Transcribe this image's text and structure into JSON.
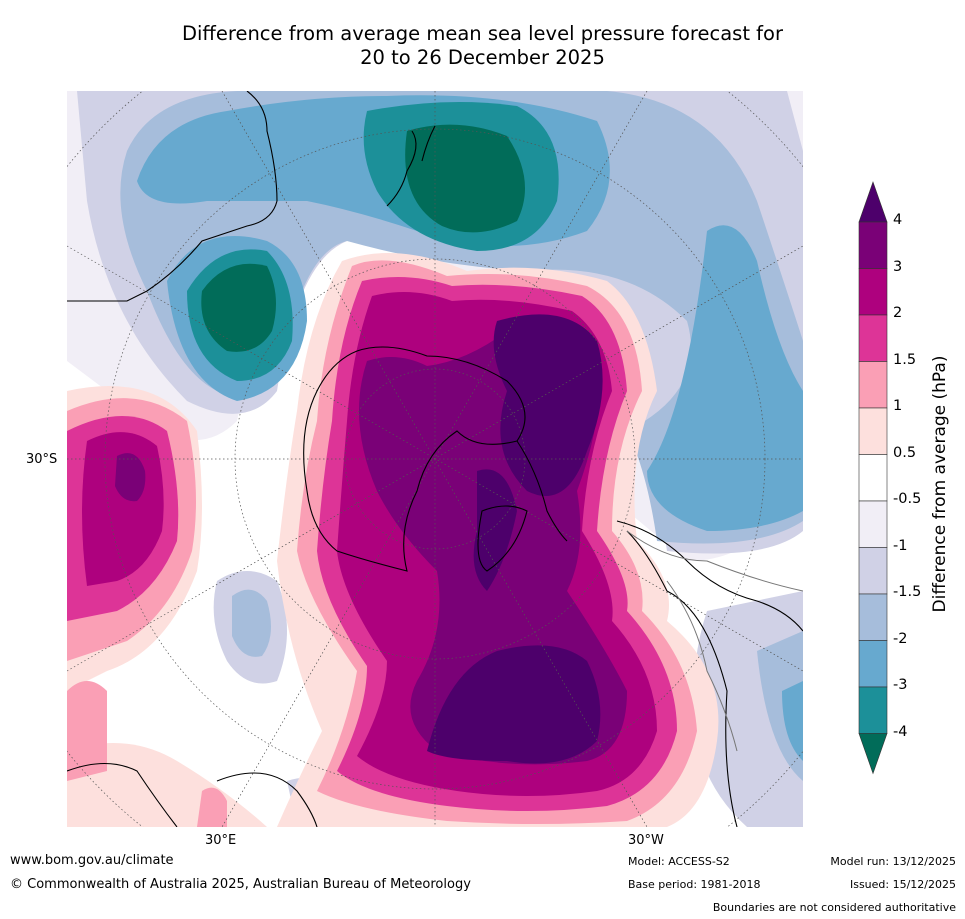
{
  "title_line1": "Difference from average mean sea level pressure forecast for",
  "title_line2": "20 to 26 December 2025",
  "map": {
    "lat_label_left": "30°S",
    "lon_label_bottom_left": "30°E",
    "lon_label_bottom_right": "30°W"
  },
  "colorbar": {
    "title": "Difference from average (hPa)",
    "ticks": [
      "4",
      "3",
      "2",
      "1.5",
      "1",
      "0.5",
      "-0.5",
      "-1",
      "-1.5",
      "-2",
      "-3",
      "-4"
    ],
    "colors": {
      "4": "#4d006b",
      "3": "#7a0177",
      "2": "#ae017e",
      "1.5": "#dd3497",
      "1": "#fa9fb5",
      "0.5": "#fde0dd",
      "0": "#ffffff",
      "-0.5": "#f1eef6",
      "-1": "#d0d1e6",
      "-1.5": "#a6bddb",
      "-2": "#67a9cf",
      "-3": "#1c9099",
      "-4": "#016c59"
    }
  },
  "footer": {
    "website": "www.bom.gov.au/climate",
    "copyright": "© Commonwealth of Australia 2025, Australian Bureau of Meteorology",
    "model": "Model: ACCESS-S2",
    "base_period": "Base period: 1981-2018",
    "model_run": "Model run: 13/12/2025",
    "issued": "Issued: 15/12/2025",
    "disclaimer": "Boundaries are not considered authoritative"
  }
}
